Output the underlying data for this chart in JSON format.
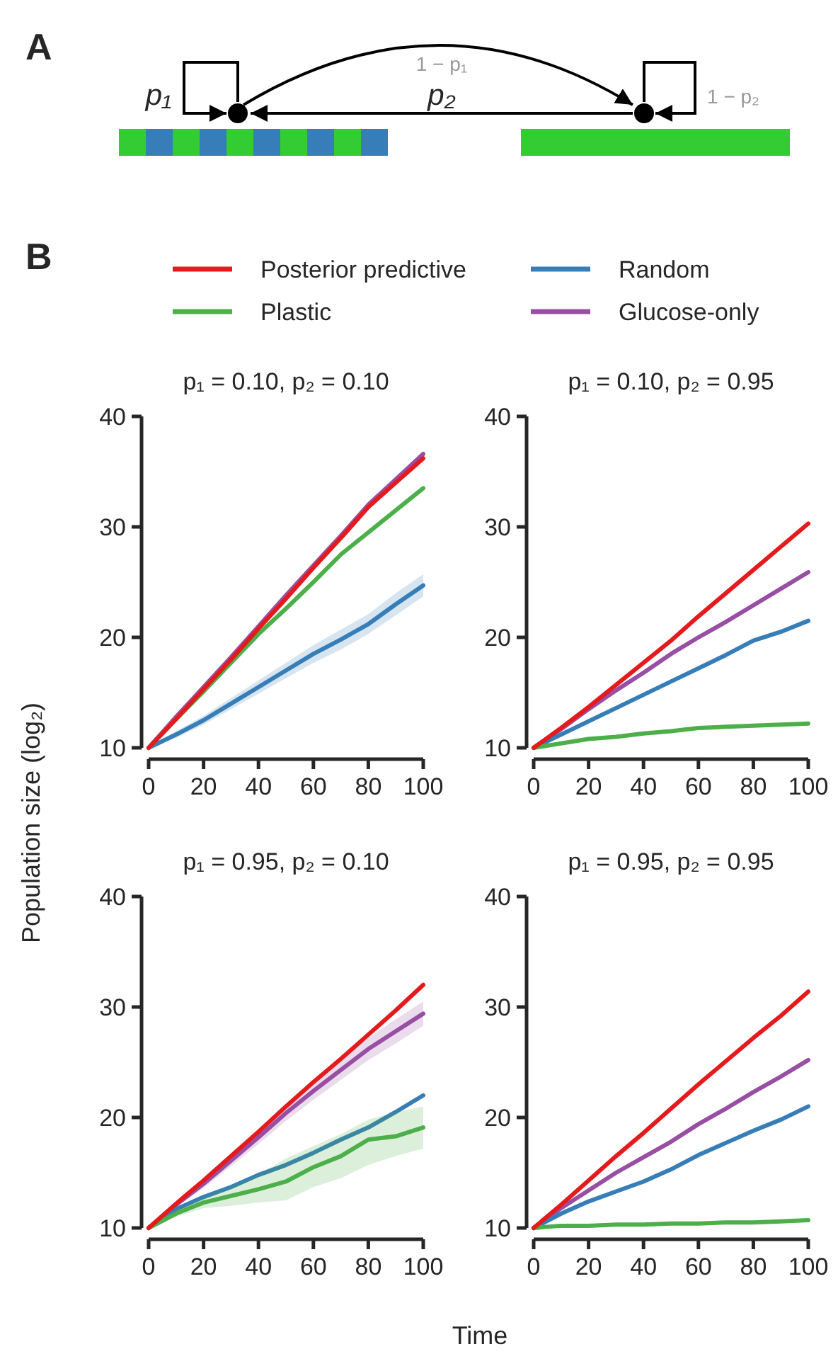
{
  "chart_data": [
    {
      "type": "other",
      "title": "A",
      "annotations": [
        "p₁",
        "1 − p₁",
        "p₂",
        "1 − p₂"
      ]
    },
    {
      "type": "line",
      "title": "p₁ = 0.10, p₂ = 0.10",
      "xlabel": "Time",
      "ylabel": "Population size (log₂)",
      "annotations": [
        "B"
      ],
      "legend": "top",
      "x": [
        0,
        10,
        20,
        30,
        40,
        50,
        60,
        70,
        80,
        90,
        100
      ],
      "xlim": [
        0,
        100
      ],
      "xticks": [
        0,
        20,
        40,
        60,
        80,
        100
      ],
      "ylim": [
        10,
        40
      ],
      "yticks": [
        10,
        20,
        30,
        40
      ],
      "series": [
        {
          "name": "Posterior predictive",
          "color": "#e41a1c",
          "values": [
            10,
            12.6,
            15.3,
            18,
            20.8,
            23.5,
            26.3,
            29,
            31.8,
            34,
            36.2
          ]
        },
        {
          "name": "Plastic",
          "color": "#4daf4a",
          "values": [
            10,
            12.6,
            15.1,
            17.7,
            20.3,
            22.6,
            25,
            27.5,
            29.5,
            31.5,
            33.5
          ]
        },
        {
          "name": "Random",
          "color": "#377eb8",
          "values": [
            10,
            11.2,
            12.5,
            14,
            15.5,
            17,
            18.5,
            19.8,
            21.2,
            23,
            24.7
          ],
          "lower": [
            10,
            10.9,
            12.1,
            13.5,
            14.9,
            16.3,
            17.7,
            18.9,
            20.3,
            22,
            23.7
          ],
          "upper": [
            10,
            11.5,
            12.9,
            14.5,
            16.1,
            17.7,
            19.3,
            20.7,
            22.1,
            24,
            25.7
          ]
        },
        {
          "name": "Glucose-only",
          "color": "#984ea3",
          "values": [
            10,
            12.8,
            15.5,
            18.2,
            21,
            23.8,
            26.5,
            29.2,
            32,
            34.3,
            36.6
          ]
        }
      ]
    },
    {
      "type": "line",
      "title": "p₁ = 0.10, p₂ = 0.95",
      "x": [
        0,
        10,
        20,
        30,
        40,
        50,
        60,
        70,
        80,
        90,
        100
      ],
      "xlim": [
        0,
        100
      ],
      "xticks": [
        0,
        20,
        40,
        60,
        80,
        100
      ],
      "ylim": [
        10,
        40
      ],
      "yticks": [
        10,
        20,
        30,
        40
      ],
      "series": [
        {
          "color": "#e41a1c",
          "values": [
            10,
            11.8,
            13.7,
            15.7,
            17.7,
            19.7,
            21.9,
            24,
            26.1,
            28.2,
            30.3
          ]
        },
        {
          "color": "#4daf4a",
          "values": [
            10,
            10.4,
            10.8,
            11,
            11.3,
            11.5,
            11.8,
            11.9,
            12,
            12.1,
            12.2
          ]
        },
        {
          "color": "#377eb8",
          "values": [
            10,
            11.2,
            12.4,
            13.6,
            14.8,
            16,
            17.2,
            18.4,
            19.7,
            20.5,
            21.5
          ]
        },
        {
          "color": "#984ea3",
          "values": [
            10,
            11.7,
            13.5,
            15.2,
            16.8,
            18.5,
            20,
            21.4,
            22.9,
            24.4,
            25.9
          ]
        }
      ]
    },
    {
      "type": "line",
      "title": "p₁ = 0.95, p₂ = 0.10",
      "x": [
        0,
        10,
        20,
        30,
        40,
        50,
        60,
        70,
        80,
        90,
        100
      ],
      "xlim": [
        0,
        100
      ],
      "xticks": [
        0,
        20,
        40,
        60,
        80,
        100
      ],
      "ylim": [
        10,
        40
      ],
      "yticks": [
        10,
        20,
        30,
        40
      ],
      "series": [
        {
          "color": "#e41a1c",
          "values": [
            10,
            12.2,
            14.3,
            16.5,
            18.7,
            21,
            23.2,
            25.3,
            27.5,
            29.7,
            32
          ]
        },
        {
          "color": "#4daf4a",
          "values": [
            10,
            11.3,
            12.3,
            12.9,
            13.5,
            14.2,
            15.5,
            16.5,
            18,
            18.3,
            19.1
          ],
          "lower": [
            10,
            11,
            11.8,
            12,
            12.3,
            12.5,
            13.7,
            14.5,
            15.7,
            16.5,
            17.2
          ],
          "upper": [
            10,
            11.6,
            12.8,
            13.8,
            14.8,
            16.3,
            17.4,
            18.5,
            19.8,
            20.5,
            21
          ]
        },
        {
          "color": "#377eb8",
          "values": [
            10,
            11.7,
            12.8,
            13.7,
            14.8,
            15.7,
            16.8,
            18,
            19.1,
            20.5,
            22
          ]
        },
        {
          "color": "#984ea3",
          "values": [
            10,
            12.1,
            14,
            16.1,
            18.2,
            20.4,
            22.4,
            24.3,
            26.2,
            27.8,
            29.4
          ],
          "lower": [
            10,
            11.9,
            13.6,
            15.6,
            17.6,
            19.7,
            21.6,
            23.4,
            25.2,
            26.7,
            28.3
          ],
          "upper": [
            10,
            12.3,
            14.4,
            16.6,
            18.8,
            21.1,
            23.2,
            25.2,
            27.2,
            28.9,
            30.5
          ]
        }
      ]
    },
    {
      "type": "line",
      "title": "p₁ = 0.95, p₂ = 0.95",
      "x": [
        0,
        10,
        20,
        30,
        40,
        50,
        60,
        70,
        80,
        90,
        100
      ],
      "xlim": [
        0,
        100
      ],
      "xticks": [
        0,
        20,
        40,
        60,
        80,
        100
      ],
      "ylim": [
        10,
        40
      ],
      "yticks": [
        10,
        20,
        30,
        40
      ],
      "series": [
        {
          "color": "#e41a1c",
          "values": [
            10,
            12.1,
            14.3,
            16.5,
            18.6,
            20.8,
            23,
            25.1,
            27.2,
            29.2,
            31.4
          ]
        },
        {
          "color": "#4daf4a",
          "values": [
            10,
            10.2,
            10.2,
            10.3,
            10.3,
            10.4,
            10.4,
            10.5,
            10.5,
            10.6,
            10.7
          ]
        },
        {
          "color": "#377eb8",
          "values": [
            10,
            11.3,
            12.4,
            13.3,
            14.2,
            15.3,
            16.6,
            17.7,
            18.8,
            19.8,
            21
          ]
        },
        {
          "color": "#984ea3",
          "values": [
            10,
            11.8,
            13.4,
            15,
            16.4,
            17.8,
            19.4,
            20.8,
            22.3,
            23.7,
            25.2
          ]
        }
      ]
    }
  ]
}
